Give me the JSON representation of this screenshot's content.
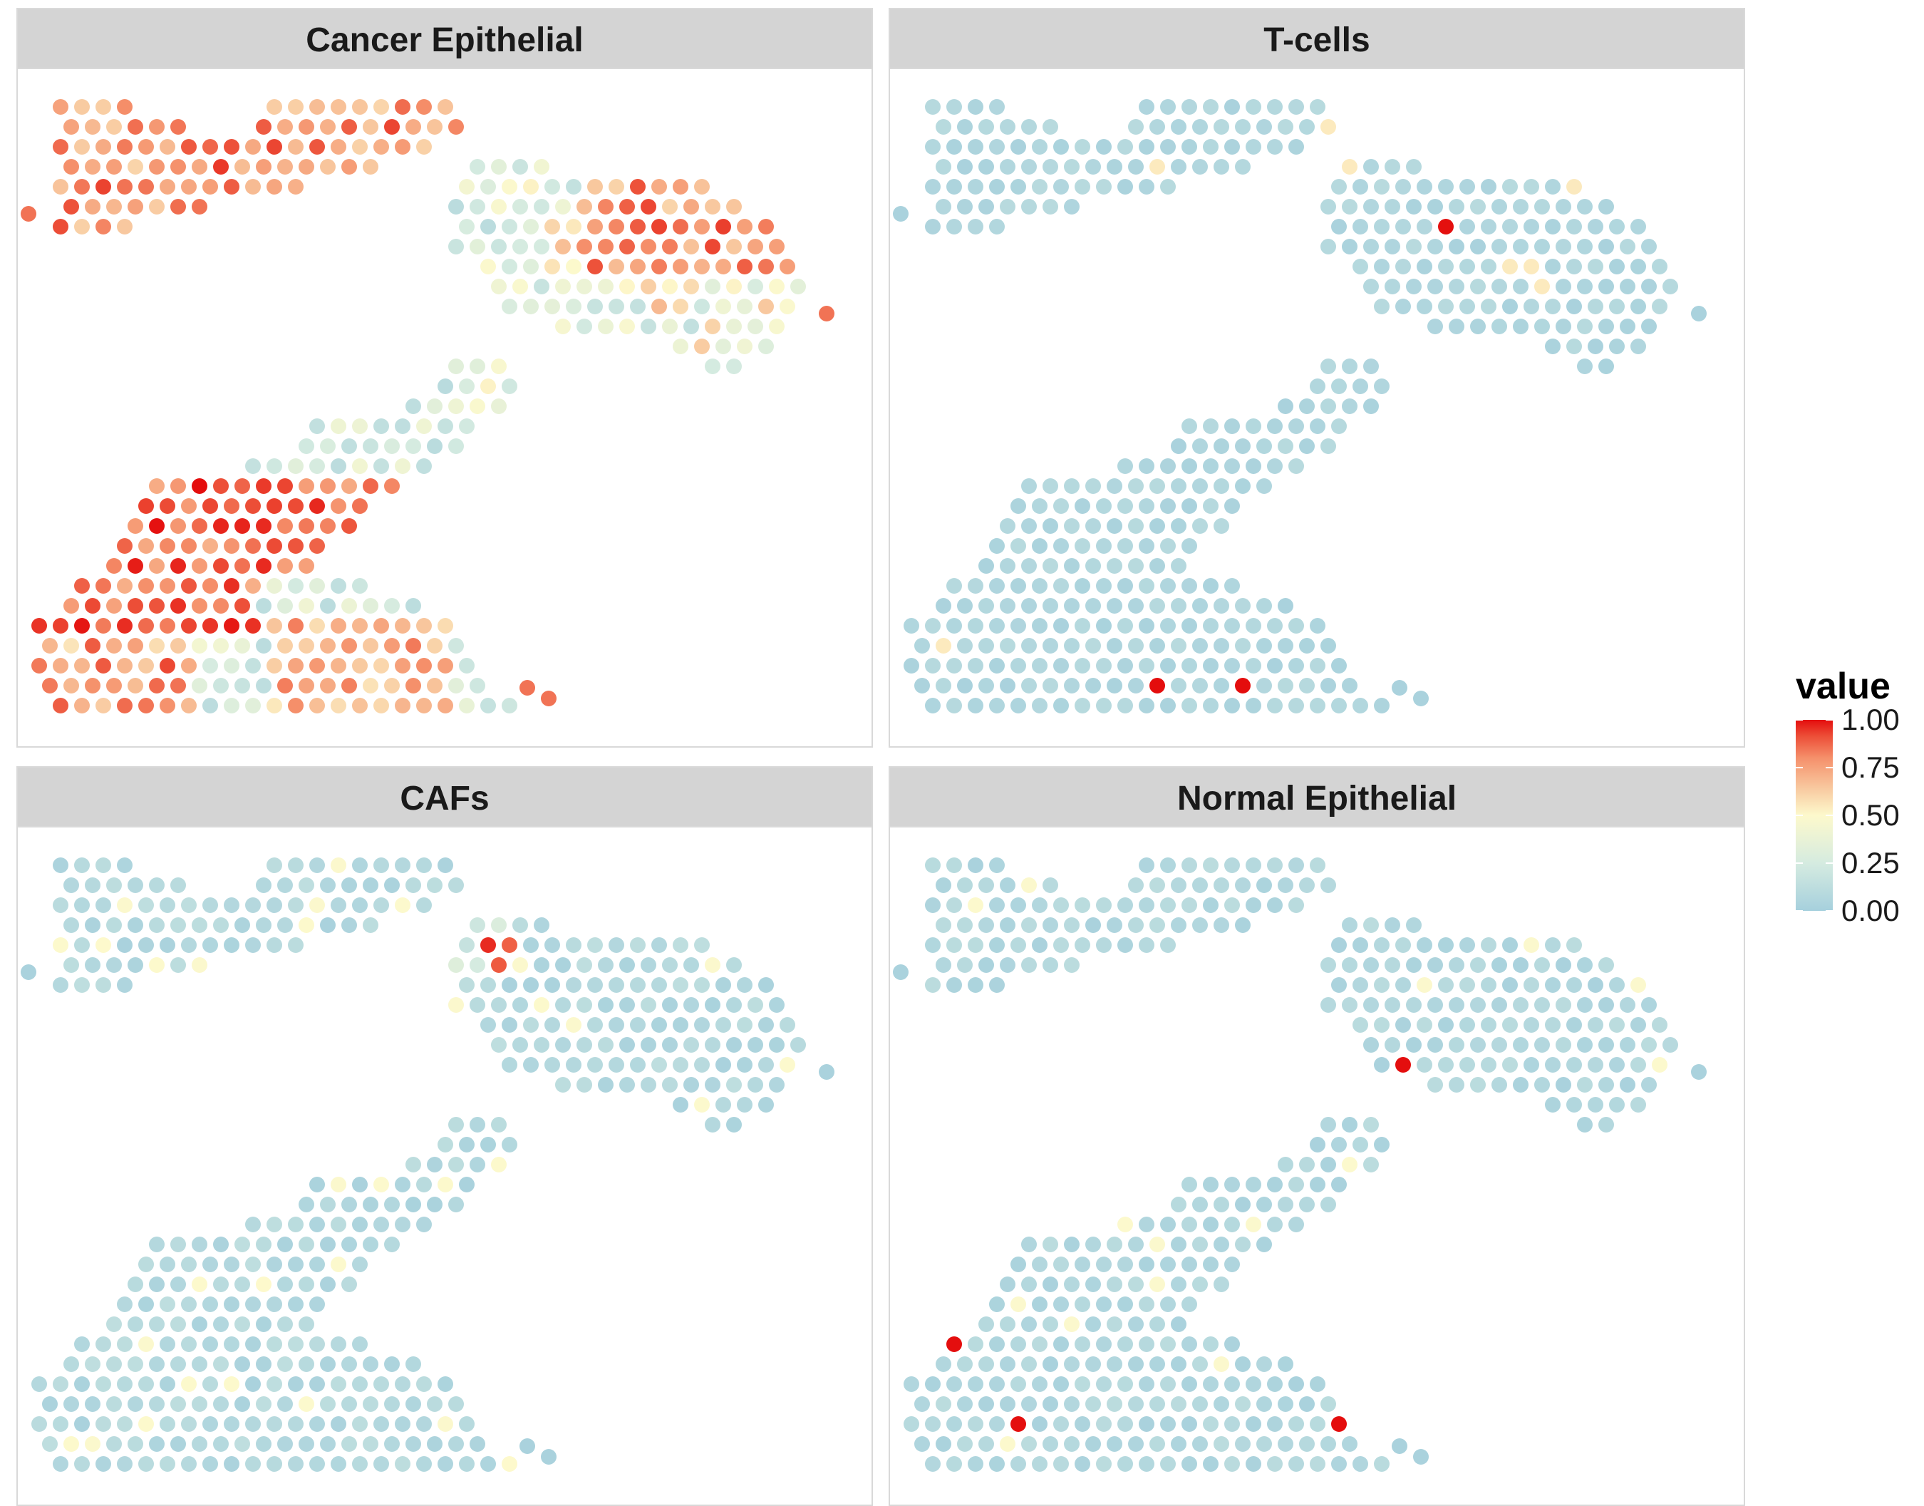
{
  "chart_data": {
    "type": "scatter",
    "description_kind": "faceted spatial spot map",
    "facets": [
      {
        "title": "Cancer Epithelial",
        "pattern": "cancer"
      },
      {
        "title": "T-cells",
        "pattern": "tcells"
      },
      {
        "title": "CAFs",
        "pattern": "cafs"
      },
      {
        "title": "Normal Epithelial",
        "pattern": "normal"
      }
    ],
    "legend": {
      "title": "value",
      "ticks": [
        "1.00",
        "0.75",
        "0.50",
        "0.25",
        "0.00"
      ],
      "tick_values": [
        1.0,
        0.75,
        0.5,
        0.25,
        0.0
      ],
      "range": [
        0,
        1
      ],
      "position": "right"
    },
    "color_scale": {
      "low": "#a6d0dd",
      "mid": "#ffffcc",
      "high": "#e8150f",
      "stops": [
        "#a6d0dd",
        "#d5ebe0",
        "#fdf9cc",
        "#f8c69d",
        "#f5906b",
        "#ec4b35",
        "#e40d0d"
      ]
    },
    "grid": false,
    "axes": "none"
  }
}
